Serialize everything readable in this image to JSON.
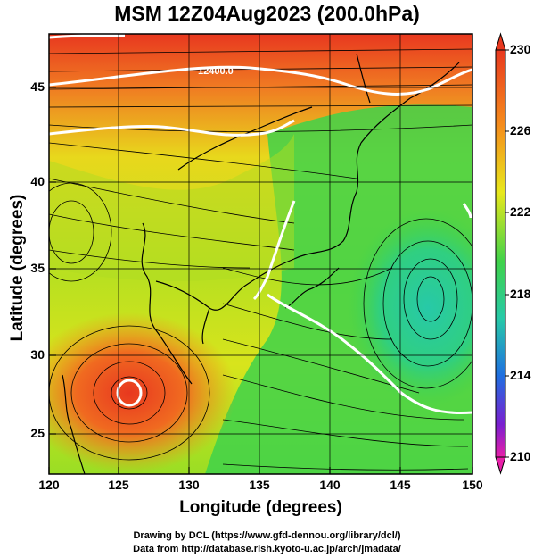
{
  "title": "MSM 12Z04Aug2023 (200.0hPa)",
  "xlabel": "Longitude (degrees)",
  "ylabel": "Latitude  (degrees)",
  "x_ticks": [
    "120",
    "125",
    "130",
    "135",
    "140",
    "145",
    "150"
  ],
  "y_ticks": [
    "25",
    "30",
    "35",
    "40",
    "45"
  ],
  "colorbar": {
    "ticks": [
      "230",
      "226",
      "222",
      "218",
      "214",
      "210"
    ],
    "range": [
      210,
      230
    ]
  },
  "contour_labels": [
    "12400.0"
  ],
  "credit_line_1": "Drawing by DCL (https://www.gfd-dennou.org/library/dcl/)",
  "credit_line_2": "Data from http://database.rish.kyoto-u.ac.jp/arch/jmadata/",
  "map": {
    "lon_range": [
      120,
      150
    ],
    "lat_range": [
      22.5,
      48
    ]
  },
  "colors": {
    "warm": "#e8381f",
    "orange": "#f58a1c",
    "yellow": "#e8e81c",
    "green": "#3fd24a",
    "cyan": "#27c9a8",
    "contour": "#ffffff"
  }
}
